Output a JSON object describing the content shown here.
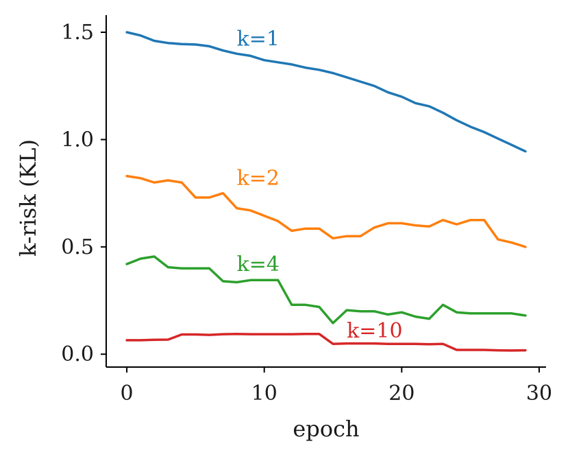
{
  "chart_data": {
    "type": "line",
    "title": "",
    "xlabel": "epoch",
    "ylabel": "k-risk (KL)",
    "xlim": [
      -1.5,
      30.5
    ],
    "ylim": [
      -0.06,
      1.58
    ],
    "xticks": [
      0,
      10,
      20,
      30
    ],
    "xtick_labels": [
      "0",
      "10",
      "20",
      "30"
    ],
    "yticks": [
      0.0,
      0.5,
      1.0,
      1.5
    ],
    "ytick_labels": [
      "0.0",
      "0.5",
      "1.0",
      "1.5"
    ],
    "grid": false,
    "x": [
      0,
      1,
      2,
      3,
      4,
      5,
      6,
      7,
      8,
      9,
      10,
      11,
      12,
      13,
      14,
      15,
      16,
      17,
      18,
      19,
      20,
      21,
      22,
      23,
      24,
      25,
      26,
      27,
      28,
      29
    ],
    "series": [
      {
        "name": "k=1",
        "color": "#1f77b4",
        "label_pos": [
          8,
          1.47
        ],
        "values": [
          1.5,
          1.485,
          1.46,
          1.45,
          1.445,
          1.443,
          1.435,
          1.415,
          1.4,
          1.39,
          1.37,
          1.36,
          1.35,
          1.335,
          1.325,
          1.31,
          1.29,
          1.27,
          1.25,
          1.22,
          1.2,
          1.17,
          1.155,
          1.125,
          1.09,
          1.06,
          1.035,
          1.005,
          0.975,
          0.945
        ]
      },
      {
        "name": "k=2",
        "color": "#ff7f0e",
        "label_pos": [
          8,
          0.82
        ],
        "values": [
          0.83,
          0.82,
          0.8,
          0.81,
          0.8,
          0.73,
          0.73,
          0.75,
          0.68,
          0.67,
          0.645,
          0.62,
          0.575,
          0.585,
          0.585,
          0.54,
          0.55,
          0.55,
          0.59,
          0.61,
          0.61,
          0.6,
          0.595,
          0.625,
          0.605,
          0.625,
          0.625,
          0.535,
          0.52,
          0.5
        ]
      },
      {
        "name": "k=4",
        "color": "#2ca02c",
        "label_pos": [
          8,
          0.42
        ],
        "values": [
          0.42,
          0.445,
          0.455,
          0.405,
          0.4,
          0.4,
          0.4,
          0.34,
          0.335,
          0.345,
          0.345,
          0.345,
          0.23,
          0.23,
          0.22,
          0.145,
          0.205,
          0.2,
          0.2,
          0.185,
          0.195,
          0.175,
          0.165,
          0.23,
          0.195,
          0.19,
          0.19,
          0.19,
          0.19,
          0.18
        ]
      },
      {
        "name": "k=10",
        "color": "#d62728",
        "label_pos": [
          16,
          0.11
        ],
        "values": [
          0.065,
          0.065,
          0.067,
          0.068,
          0.092,
          0.092,
          0.09,
          0.093,
          0.094,
          0.093,
          0.093,
          0.093,
          0.093,
          0.094,
          0.094,
          0.048,
          0.05,
          0.05,
          0.05,
          0.048,
          0.048,
          0.048,
          0.046,
          0.048,
          0.02,
          0.02,
          0.02,
          0.018,
          0.017,
          0.018
        ]
      }
    ]
  }
}
